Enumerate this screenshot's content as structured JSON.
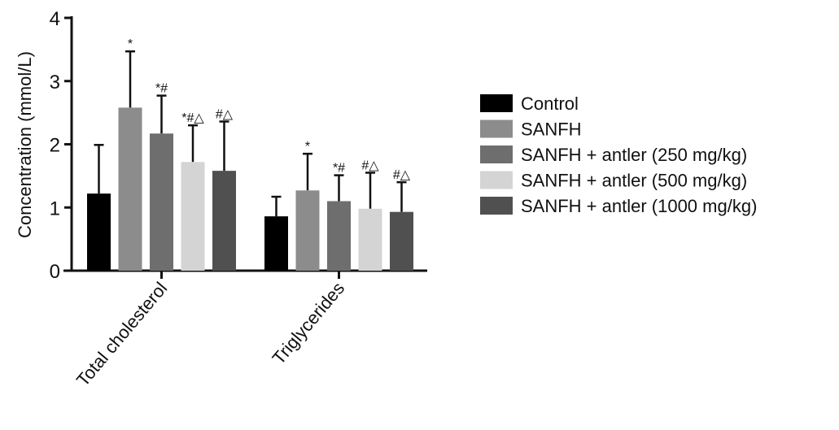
{
  "chart_data": {
    "type": "bar",
    "title": "",
    "xlabel": "",
    "ylabel": "Concentration (mmol/L)",
    "ylim": [
      0,
      4
    ],
    "yticks": [
      "0",
      "1",
      "2",
      "3",
      "4"
    ],
    "grid": false,
    "legend_position": "right",
    "categories": [
      "Total cholesterol",
      "Triglycerides"
    ],
    "series": [
      {
        "name": "Control",
        "color": "#000000",
        "values": [
          1.22,
          0.86
        ],
        "error_upper": [
          1.99,
          1.17
        ],
        "annotations": [
          "",
          ""
        ]
      },
      {
        "name": "SANFH",
        "color": "#8c8c8c",
        "values": [
          2.58,
          1.27
        ],
        "error_upper": [
          3.47,
          1.85
        ],
        "annotations": [
          "*",
          "*"
        ]
      },
      {
        "name": "SANFH + antler (250 mg/kg)",
        "color": "#6e6e6e",
        "values": [
          2.17,
          1.1
        ],
        "error_upper": [
          2.77,
          1.51
        ],
        "annotations": [
          "*#",
          "*#"
        ]
      },
      {
        "name": "SANFH + antler (500 mg/kg)",
        "color": "#d4d4d4",
        "values": [
          1.72,
          0.98
        ],
        "error_upper": [
          2.3,
          1.55
        ],
        "annotations": [
          "*#△",
          "#△"
        ]
      },
      {
        "name": "SANFH + antler (1000 mg/kg)",
        "color": "#505050",
        "values": [
          1.58,
          0.93
        ],
        "error_upper": [
          2.36,
          1.4
        ],
        "annotations": [
          "#△",
          "#△"
        ]
      }
    ]
  }
}
